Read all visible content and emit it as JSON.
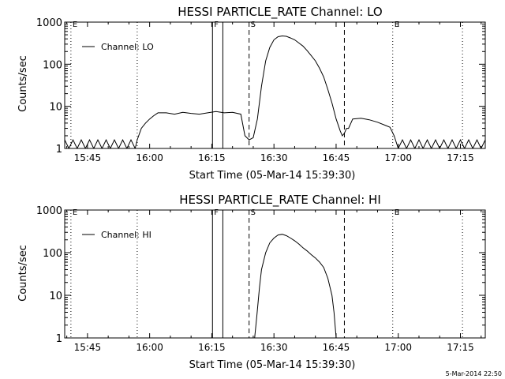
{
  "footer": {
    "timestamp": "5-Mar-2014 22:50"
  },
  "chart_data": [
    {
      "type": "line",
      "title": "HESSI PARTICLE_RATE Channel: LO",
      "xlabel": "Start Time (05-Mar-14 15:39:30)",
      "ylabel": "Counts/sec",
      "x_unit": "time of day (HH:MM)",
      "xlim": [
        "15:39:30",
        "17:21:00"
      ],
      "ylim": [
        1,
        1000
      ],
      "y_scale": "log",
      "x_ticks": [
        "15:45",
        "16:00",
        "16:15",
        "16:30",
        "16:45",
        "17:00",
        "17:15"
      ],
      "y_ticks": [
        "1",
        "10",
        "100",
        "1000"
      ],
      "legend": {
        "position": "top-left",
        "entries": [
          "Channel: LO"
        ]
      },
      "markers": [
        {
          "time": "15:41:00",
          "label": "E",
          "style": "dotted"
        },
        {
          "time": "15:57:00",
          "label": "",
          "style": "dotted"
        },
        {
          "time": "16:15:10",
          "label": "F",
          "style": "solid"
        },
        {
          "time": "16:17:40",
          "label": "",
          "style": "solid"
        },
        {
          "time": "16:24:00",
          "label": "S",
          "style": "dashed"
        },
        {
          "time": "16:47:00",
          "label": "",
          "style": "dashed"
        },
        {
          "time": "16:58:40",
          "label": "E",
          "style": "dotted"
        },
        {
          "time": "17:15:30",
          "label": "",
          "style": "dotted"
        }
      ],
      "series": [
        {
          "name": "Channel: LO",
          "points": [
            [
              "15:39:30",
              1.6
            ],
            [
              "15:40:30",
              1.0
            ],
            [
              "15:41:30",
              1.6
            ],
            [
              "15:42:30",
              1.0
            ],
            [
              "15:43:30",
              1.6
            ],
            [
              "15:44:30",
              1.0
            ],
            [
              "15:45:30",
              1.6
            ],
            [
              "15:46:30",
              1.0
            ],
            [
              "15:47:30",
              1.6
            ],
            [
              "15:48:30",
              1.0
            ],
            [
              "15:49:30",
              1.6
            ],
            [
              "15:50:30",
              1.0
            ],
            [
              "15:51:30",
              1.6
            ],
            [
              "15:52:30",
              1.0
            ],
            [
              "15:53:30",
              1.6
            ],
            [
              "15:54:30",
              1.0
            ],
            [
              "15:55:30",
              1.6
            ],
            [
              "15:56:30",
              1.0
            ],
            [
              "15:57:00",
              1.6
            ],
            [
              "15:58:00",
              3.0
            ],
            [
              "15:59:00",
              4.0
            ],
            [
              "16:00:00",
              5.0
            ],
            [
              "16:01:00",
              6.0
            ],
            [
              "16:02:00",
              7.0
            ],
            [
              "16:04:00",
              7.0
            ],
            [
              "16:06:00",
              6.5
            ],
            [
              "16:08:00",
              7.2
            ],
            [
              "16:10:00",
              6.8
            ],
            [
              "16:12:00",
              6.5
            ],
            [
              "16:14:00",
              7.0
            ],
            [
              "16:16:00",
              7.5
            ],
            [
              "16:18:00",
              7.0
            ],
            [
              "16:20:00",
              7.2
            ],
            [
              "16:22:00",
              6.5
            ],
            [
              "16:23:00",
              2.0
            ],
            [
              "16:24:00",
              1.6
            ],
            [
              "16:25:00",
              1.8
            ],
            [
              "16:26:00",
              5.0
            ],
            [
              "16:27:00",
              30
            ],
            [
              "16:28:00",
              120
            ],
            [
              "16:29:00",
              250
            ],
            [
              "16:30:00",
              380
            ],
            [
              "16:31:00",
              450
            ],
            [
              "16:32:00",
              470
            ],
            [
              "16:33:00",
              460
            ],
            [
              "16:34:00",
              420
            ],
            [
              "16:35:00",
              380
            ],
            [
              "16:36:00",
              320
            ],
            [
              "16:37:00",
              270
            ],
            [
              "16:38:00",
              210
            ],
            [
              "16:39:00",
              160
            ],
            [
              "16:40:00",
              120
            ],
            [
              "16:41:00",
              80
            ],
            [
              "16:42:00",
              50
            ],
            [
              "16:43:00",
              25
            ],
            [
              "16:44:00",
              12
            ],
            [
              "16:45:00",
              5.0
            ],
            [
              "16:46:00",
              2.6
            ],
            [
              "16:46:30",
              2.0
            ],
            [
              "16:47:00",
              2.3
            ],
            [
              "16:47:30",
              3.0
            ],
            [
              "16:48:00",
              3.0
            ],
            [
              "16:49:00",
              5.0
            ],
            [
              "16:51:00",
              5.2
            ],
            [
              "16:53:00",
              4.8
            ],
            [
              "16:55:00",
              4.2
            ],
            [
              "16:57:00",
              3.5
            ],
            [
              "16:58:00",
              3.2
            ],
            [
              "16:59:00",
              2.0
            ],
            [
              "17:00:00",
              1.0
            ],
            [
              "17:01:00",
              1.6
            ],
            [
              "17:02:00",
              1.0
            ],
            [
              "17:03:00",
              1.6
            ],
            [
              "17:04:00",
              1.0
            ],
            [
              "17:05:00",
              1.6
            ],
            [
              "17:06:00",
              1.0
            ],
            [
              "17:07:00",
              1.6
            ],
            [
              "17:08:00",
              1.0
            ],
            [
              "17:09:00",
              1.6
            ],
            [
              "17:10:00",
              1.0
            ],
            [
              "17:11:00",
              1.6
            ],
            [
              "17:12:00",
              1.0
            ],
            [
              "17:13:00",
              1.6
            ],
            [
              "17:14:00",
              1.0
            ],
            [
              "17:15:00",
              1.6
            ],
            [
              "17:16:00",
              1.0
            ],
            [
              "17:17:00",
              1.6
            ],
            [
              "17:18:00",
              1.0
            ],
            [
              "17:19:00",
              1.6
            ],
            [
              "17:20:00",
              1.0
            ],
            [
              "17:21:00",
              1.6
            ]
          ]
        }
      ]
    },
    {
      "type": "line",
      "title": "HESSI PARTICLE_RATE Channel: HI",
      "xlabel": "Start Time (05-Mar-14 15:39:30)",
      "ylabel": "Counts/sec",
      "x_unit": "time of day (HH:MM)",
      "xlim": [
        "15:39:30",
        "17:21:00"
      ],
      "ylim": [
        1,
        1000
      ],
      "y_scale": "log",
      "x_ticks": [
        "15:45",
        "16:00",
        "16:15",
        "16:30",
        "16:45",
        "17:00",
        "17:15"
      ],
      "y_ticks": [
        "1",
        "10",
        "100",
        "1000"
      ],
      "legend": {
        "position": "top-left",
        "entries": [
          "Channel: HI"
        ]
      },
      "markers": [
        {
          "time": "15:41:00",
          "label": "E",
          "style": "dotted"
        },
        {
          "time": "15:57:00",
          "label": "",
          "style": "dotted"
        },
        {
          "time": "16:15:10",
          "label": "F",
          "style": "solid"
        },
        {
          "time": "16:17:40",
          "label": "",
          "style": "solid"
        },
        {
          "time": "16:24:00",
          "label": "S",
          "style": "dashed"
        },
        {
          "time": "16:47:00",
          "label": "",
          "style": "dashed"
        },
        {
          "time": "16:58:40",
          "label": "E",
          "style": "dotted"
        },
        {
          "time": "17:15:30",
          "label": "",
          "style": "dotted"
        }
      ],
      "series": [
        {
          "name": "Channel: HI",
          "points": [
            [
              "16:25:20",
              1.0
            ],
            [
              "16:25:50",
              3.0
            ],
            [
              "16:26:30",
              15
            ],
            [
              "16:27:00",
              40
            ],
            [
              "16:28:00",
              100
            ],
            [
              "16:29:00",
              170
            ],
            [
              "16:30:00",
              220
            ],
            [
              "16:31:00",
              260
            ],
            [
              "16:32:00",
              270
            ],
            [
              "16:33:00",
              250
            ],
            [
              "16:34:00",
              220
            ],
            [
              "16:35:00",
              190
            ],
            [
              "16:36:00",
              160
            ],
            [
              "16:37:00",
              130
            ],
            [
              "16:38:00",
              110
            ],
            [
              "16:39:00",
              90
            ],
            [
              "16:40:00",
              75
            ],
            [
              "16:41:00",
              60
            ],
            [
              "16:42:00",
              45
            ],
            [
              "16:43:00",
              25
            ],
            [
              "16:44:00",
              10
            ],
            [
              "16:44:30",
              4.0
            ],
            [
              "16:45:00",
              1.0
            ]
          ]
        }
      ]
    }
  ]
}
